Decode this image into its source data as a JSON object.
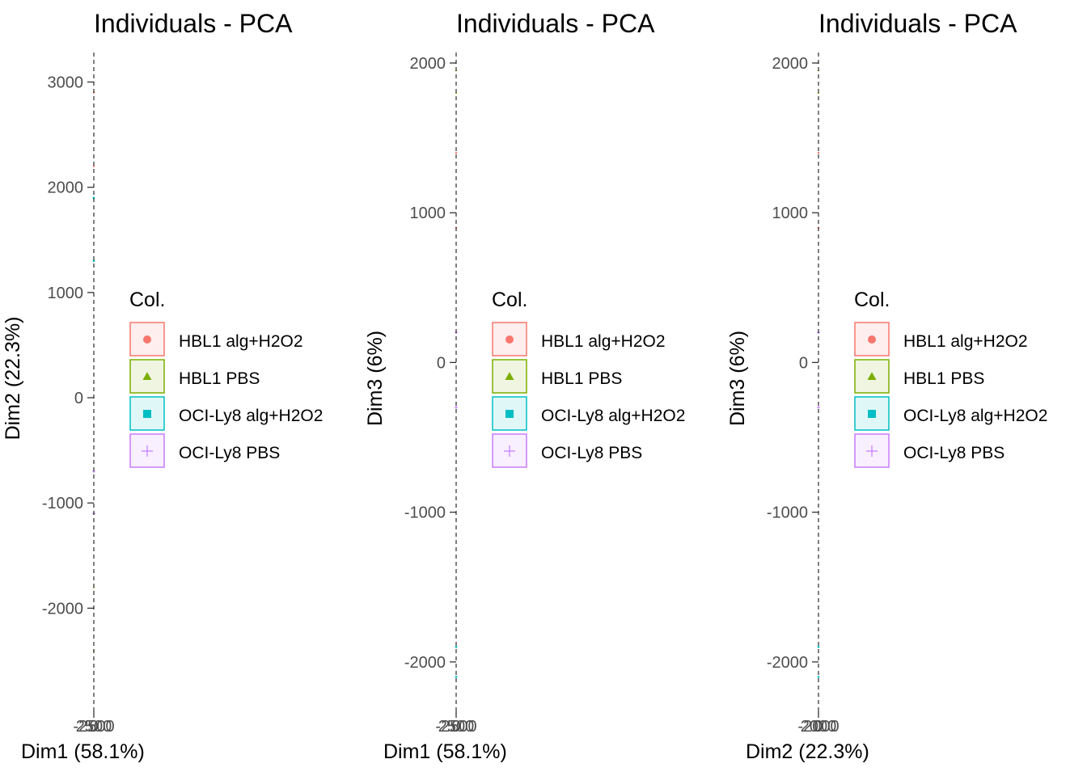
{
  "legend": {
    "title": "Col.",
    "entries": [
      {
        "label": "HBL1 alg+H2O2",
        "color": "#F8766D",
        "shape": "circle"
      },
      {
        "label": "HBL1 PBS",
        "color": "#7CAE00",
        "shape": "triangle"
      },
      {
        "label": "OCI-Ly8 alg+H2O2",
        "color": "#00BFC4",
        "shape": "square"
      },
      {
        "label": "OCI-Ly8 PBS",
        "color": "#C77CFF",
        "shape": "plus"
      }
    ]
  },
  "chart_data": [
    {
      "type": "scatter",
      "title": "Individuals - PCA",
      "xlabel": "Dim1 (58.1%)",
      "ylabel": "Dim2 (22.3%)",
      "ylim": [
        -2980,
        3280
      ],
      "yticks": [
        3000,
        2000,
        1000,
        0,
        -1000,
        -2000
      ],
      "xticks": [
        "-2500",
        "0",
        "2500"
      ],
      "series": [
        {
          "name": "HBL1 alg+H2O2",
          "points": [
            {
              "x": 0,
              "y": 2200
            },
            {
              "x": 0,
              "y": 2900
            }
          ]
        },
        {
          "name": "HBL1 PBS",
          "points": [
            {
              "x": 0,
              "y": -1800
            },
            {
              "x": 0,
              "y": -2400
            }
          ]
        },
        {
          "name": "OCI-Ly8 alg+H2O2",
          "points": [
            {
              "x": 0,
              "y": 1300
            },
            {
              "x": 0,
              "y": 1900
            }
          ]
        },
        {
          "name": "OCI-Ly8 PBS",
          "points": [
            {
              "x": 0,
              "y": -700
            },
            {
              "x": 0,
              "y": -1100
            }
          ]
        }
      ]
    },
    {
      "type": "scatter",
      "title": "Individuals - PCA",
      "xlabel": "Dim1 (58.1%)",
      "ylabel": "Dim3 (6%)",
      "ylim": [
        -2330,
        2070
      ],
      "yticks": [
        2000,
        1000,
        0,
        -1000,
        -2000
      ],
      "xticks": [
        "-2500",
        "0",
        "2500"
      ],
      "series": [
        {
          "name": "HBL1 alg+H2O2",
          "points": [
            {
              "x": 0,
              "y": 900
            },
            {
              "x": 0,
              "y": 1400
            }
          ]
        },
        {
          "name": "HBL1 PBS",
          "points": [
            {
              "x": 0,
              "y": 1800
            },
            {
              "x": 0,
              "y": 1950
            }
          ]
        },
        {
          "name": "OCI-Ly8 alg+H2O2",
          "points": [
            {
              "x": 0,
              "y": -1900
            },
            {
              "x": 0,
              "y": -2100
            }
          ]
        },
        {
          "name": "OCI-Ly8 PBS",
          "points": [
            {
              "x": 0,
              "y": -300
            },
            {
              "x": 0,
              "y": 200
            }
          ]
        }
      ]
    },
    {
      "type": "scatter",
      "title": "Individuals - PCA",
      "xlabel": "Dim2 (22.3%)",
      "ylabel": "Dim3 (6%)",
      "ylim": [
        -2330,
        2070
      ],
      "yticks": [
        2000,
        1000,
        0,
        -1000,
        -2000
      ],
      "xticks": [
        "-2000",
        "0",
        "2000"
      ],
      "series": [
        {
          "name": "HBL1 alg+H2O2",
          "points": [
            {
              "x": 0,
              "y": 900
            },
            {
              "x": 0,
              "y": 1400
            }
          ]
        },
        {
          "name": "HBL1 PBS",
          "points": [
            {
              "x": 0,
              "y": 1800
            },
            {
              "x": 0,
              "y": 1950
            }
          ]
        },
        {
          "name": "OCI-Ly8 alg+H2O2",
          "points": [
            {
              "x": 0,
              "y": -1900
            },
            {
              "x": 0,
              "y": -2100
            }
          ]
        },
        {
          "name": "OCI-Ly8 PBS",
          "points": [
            {
              "x": 0,
              "y": -300
            },
            {
              "x": 0,
              "y": 200
            }
          ]
        }
      ]
    }
  ]
}
